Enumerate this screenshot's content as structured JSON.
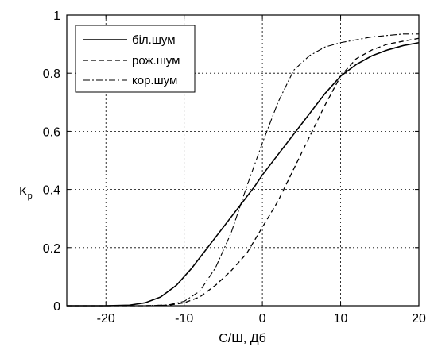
{
  "chart_data": {
    "type": "line",
    "xlabel": "С/Ш, Дб",
    "ylabel_main": "K",
    "ylabel_sub": "p",
    "xlim": [
      -25,
      20
    ],
    "ylim": [
      0,
      1
    ],
    "x_ticks": [
      -20,
      -10,
      0,
      10,
      20
    ],
    "x_tick_labels": [
      "-20",
      "-10",
      "0",
      "10",
      "20"
    ],
    "y_ticks": [
      0,
      0.2,
      0.4,
      0.6,
      0.8,
      1
    ],
    "y_tick_labels": [
      "0",
      "0.2",
      "0.4",
      "0.6",
      "0.8",
      "1"
    ],
    "grid": true,
    "legend_position": "top-left",
    "series": [
      {
        "name": "біл.шум",
        "style": "solid",
        "x": [
          -25,
          -20,
          -17,
          -15,
          -13,
          -11,
          -9,
          -7,
          -5,
          -3,
          -1,
          0,
          2,
          4,
          6,
          8,
          10,
          12,
          14,
          16,
          18,
          20
        ],
        "y": [
          0,
          0,
          0.002,
          0.01,
          0.03,
          0.07,
          0.13,
          0.2,
          0.27,
          0.34,
          0.41,
          0.45,
          0.52,
          0.59,
          0.66,
          0.73,
          0.79,
          0.83,
          0.86,
          0.88,
          0.895,
          0.905
        ]
      },
      {
        "name": "рож.шум",
        "style": "dashed",
        "x": [
          -25,
          -15,
          -12,
          -10,
          -8,
          -6,
          -4,
          -2,
          0,
          2,
          4,
          6,
          8,
          10,
          12,
          14,
          16,
          18,
          20
        ],
        "y": [
          0,
          0,
          0.002,
          0.01,
          0.03,
          0.07,
          0.12,
          0.18,
          0.27,
          0.36,
          0.47,
          0.58,
          0.69,
          0.79,
          0.85,
          0.88,
          0.9,
          0.91,
          0.92
        ]
      },
      {
        "name": "кор.шум",
        "style": "dashdot",
        "x": [
          -25,
          -15,
          -12,
          -10,
          -8,
          -6,
          -4,
          -2,
          0,
          2,
          4,
          6,
          8,
          10,
          12,
          14,
          16,
          18,
          20
        ],
        "y": [
          0,
          0,
          0.003,
          0.015,
          0.05,
          0.13,
          0.25,
          0.41,
          0.56,
          0.7,
          0.81,
          0.86,
          0.89,
          0.905,
          0.915,
          0.925,
          0.93,
          0.935,
          0.935
        ]
      }
    ]
  }
}
